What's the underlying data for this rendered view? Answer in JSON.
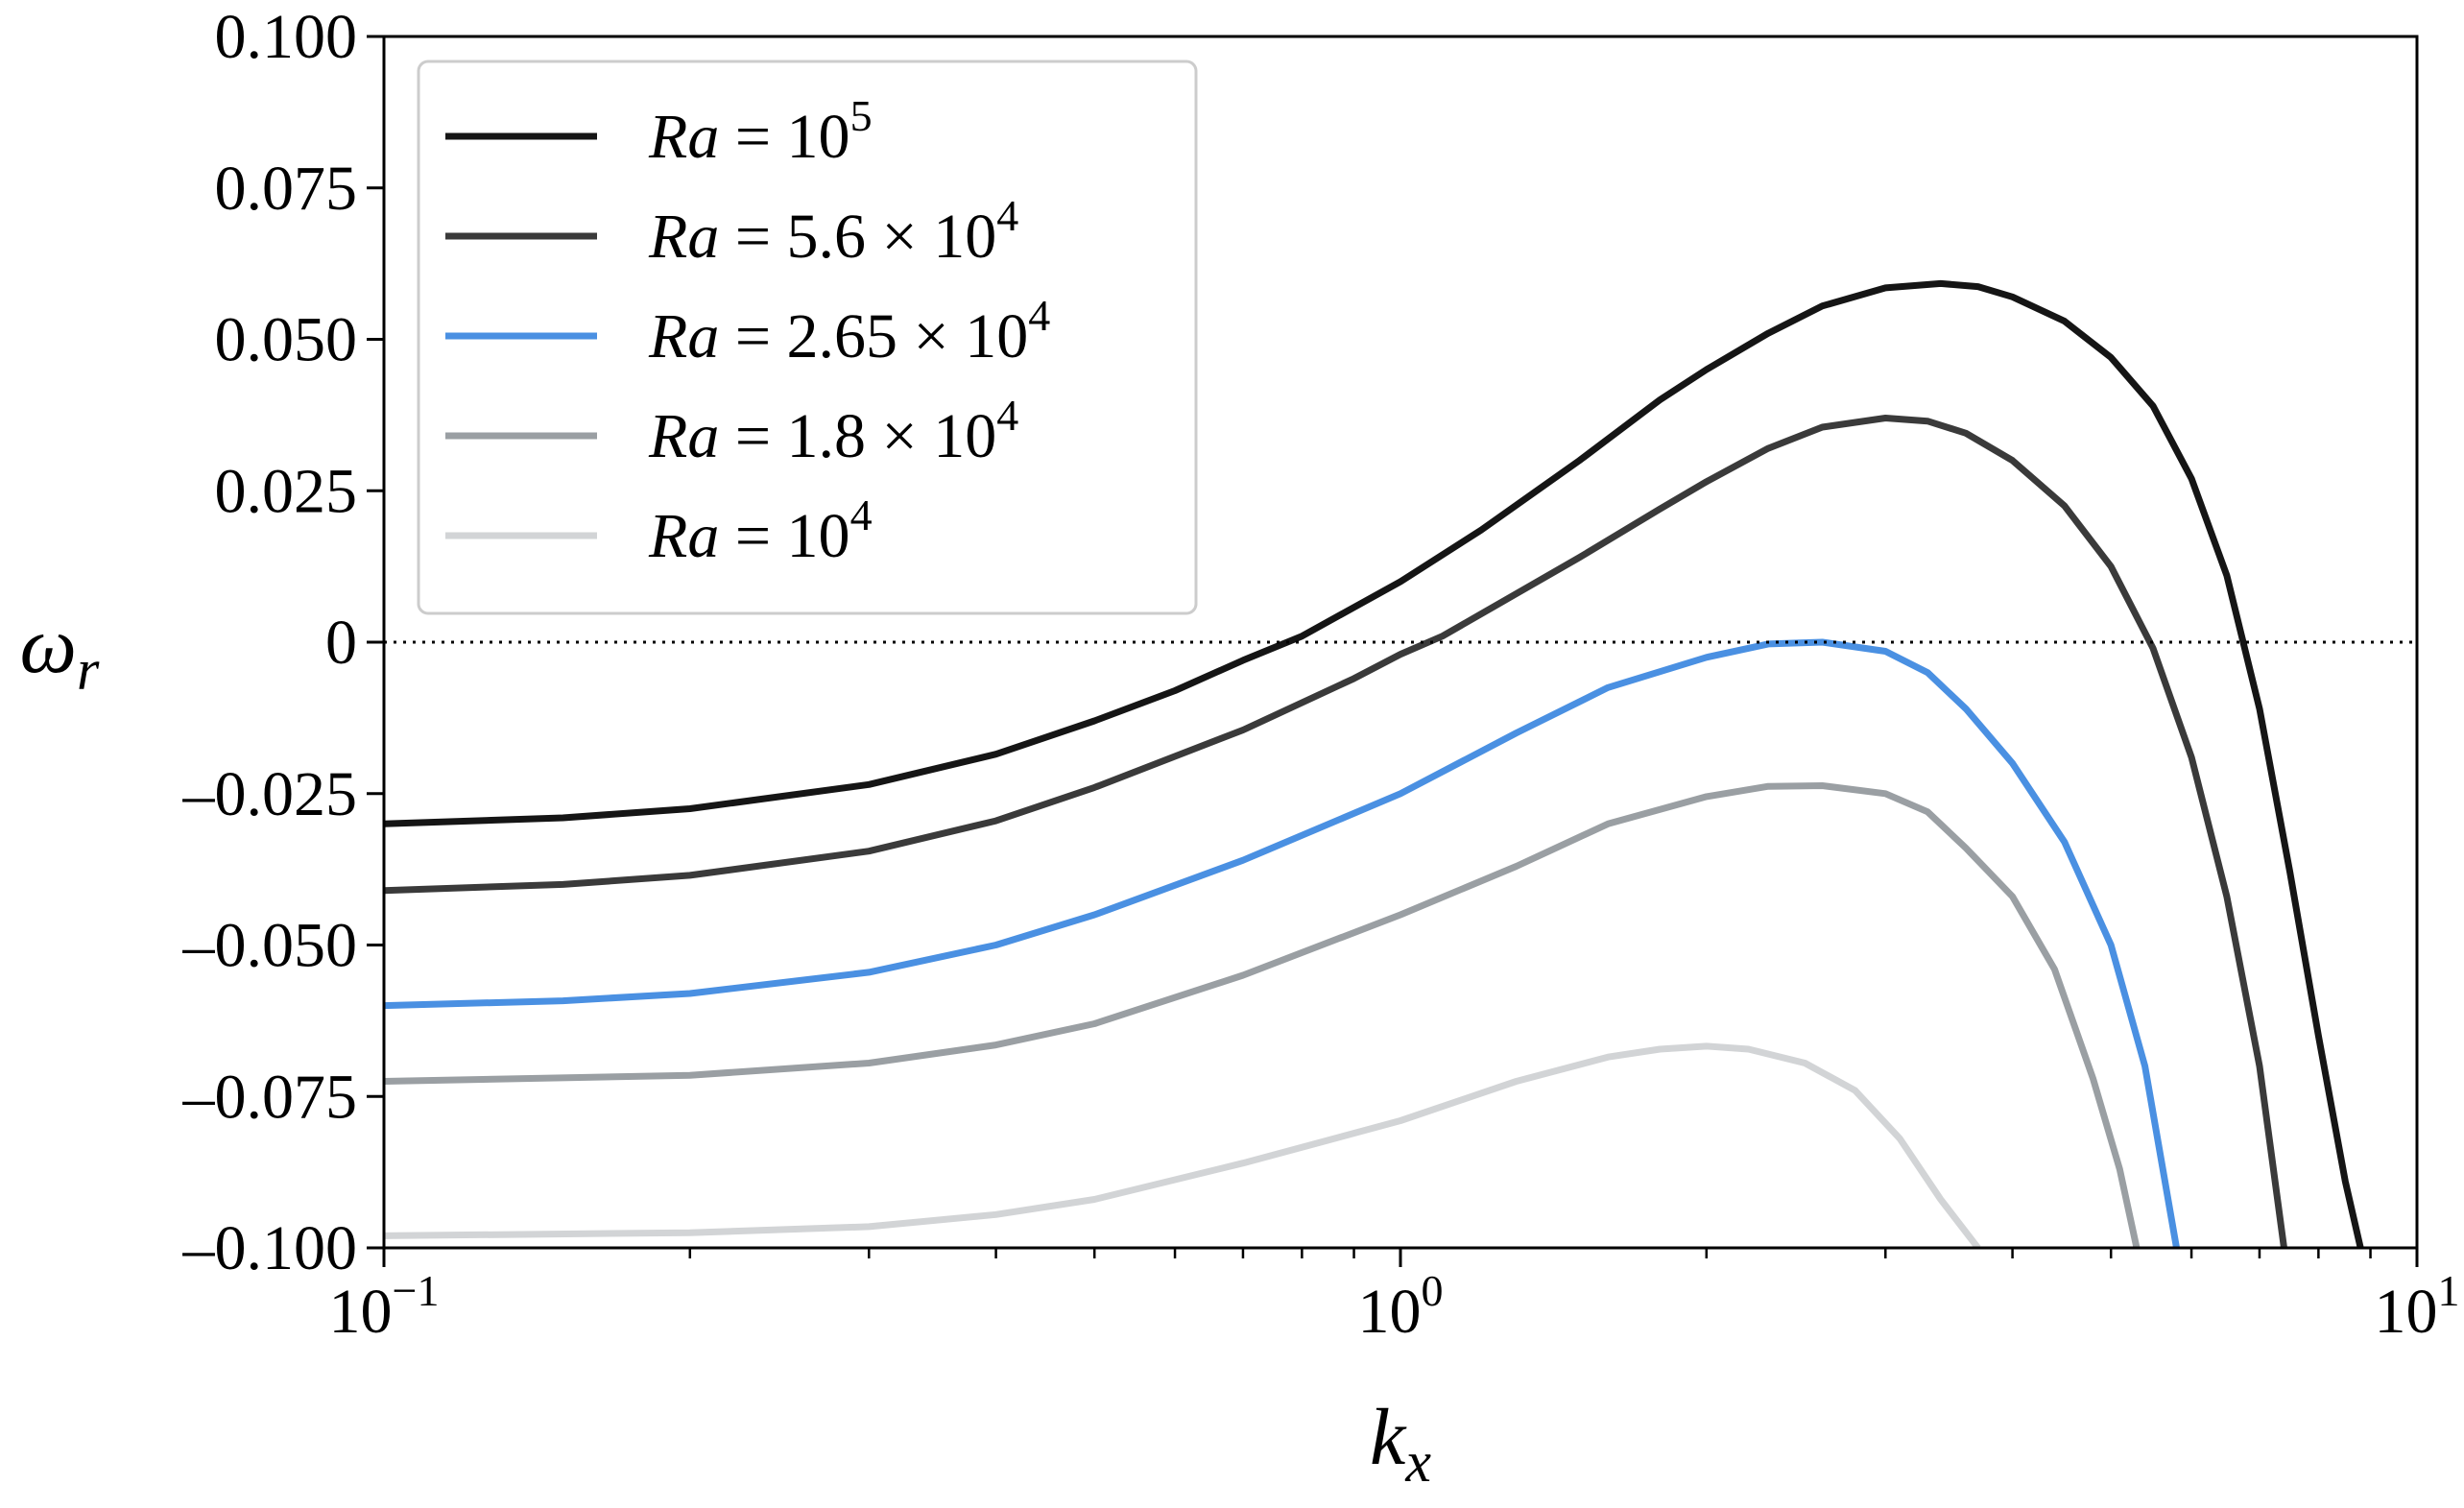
{
  "chart_data": {
    "type": "line",
    "title": "",
    "xlabel": "k",
    "xlabel_sub": "x",
    "ylabel": "ω",
    "ylabel_sub": "r",
    "xscale": "log",
    "xlim": [
      0.1,
      10
    ],
    "ylim": [
      -0.1,
      0.1
    ],
    "xticks": [
      {
        "value": 0.1,
        "base": "10",
        "exp": "−1"
      },
      {
        "value": 1,
        "base": "10",
        "exp": "0"
      },
      {
        "value": 10,
        "base": "10",
        "exp": "1"
      }
    ],
    "yticks": [
      {
        "value": 0.1,
        "label": "0.100"
      },
      {
        "value": 0.075,
        "label": "0.075"
      },
      {
        "value": 0.05,
        "label": "0.050"
      },
      {
        "value": 0.025,
        "label": "0.025"
      },
      {
        "value": 0,
        "label": "0"
      },
      {
        "value": -0.025,
        "label": "–0.025"
      },
      {
        "value": -0.05,
        "label": "–0.050"
      },
      {
        "value": -0.075,
        "label": "–0.075"
      },
      {
        "value": -0.1,
        "label": "–0.100"
      }
    ],
    "reference_line": {
      "y": 0,
      "style": "dotted"
    },
    "legend_position": "top-left",
    "grid": false,
    "series": [
      {
        "name": "Ra = 10^5",
        "legend": {
          "pre": "Ra",
          "mid": " = 10",
          "sup": "5"
        },
        "color": "#151515",
        "points": [
          [
            0.1,
            -0.03
          ],
          [
            0.15,
            -0.029
          ],
          [
            0.2,
            -0.0275
          ],
          [
            0.3,
            -0.0235
          ],
          [
            0.4,
            -0.0185
          ],
          [
            0.5,
            -0.013
          ],
          [
            0.6,
            -0.008
          ],
          [
            0.7,
            -0.003
          ],
          [
            0.8,
            0.001
          ],
          [
            1.0,
            0.01
          ],
          [
            1.2,
            0.0185
          ],
          [
            1.5,
            0.03
          ],
          [
            1.8,
            0.04
          ],
          [
            2.0,
            0.045
          ],
          [
            2.3,
            0.051
          ],
          [
            2.6,
            0.0555
          ],
          [
            3.0,
            0.0585
          ],
          [
            3.4,
            0.0592
          ],
          [
            3.7,
            0.0587
          ],
          [
            4.0,
            0.057
          ],
          [
            4.5,
            0.053
          ],
          [
            5.0,
            0.047
          ],
          [
            5.5,
            0.039
          ],
          [
            6.0,
            0.027
          ],
          [
            6.5,
            0.011
          ],
          [
            7.0,
            -0.011
          ],
          [
            7.5,
            -0.038
          ],
          [
            8.0,
            -0.065
          ],
          [
            8.5,
            -0.089
          ],
          [
            8.8,
            -0.1
          ]
        ]
      },
      {
        "name": "Ra = 5.6 × 10^4",
        "legend": {
          "pre": "Ra",
          "mid": " = 5.6 × 10",
          "sup": "4"
        },
        "color": "#3a3a3a",
        "points": [
          [
            0.1,
            -0.041
          ],
          [
            0.15,
            -0.04
          ],
          [
            0.2,
            -0.0385
          ],
          [
            0.3,
            -0.0345
          ],
          [
            0.4,
            -0.0295
          ],
          [
            0.5,
            -0.024
          ],
          [
            0.7,
            -0.0145
          ],
          [
            0.9,
            -0.006
          ],
          [
            1.0,
            -0.002
          ],
          [
            1.1,
            0.001
          ],
          [
            1.3,
            0.008
          ],
          [
            1.5,
            0.014
          ],
          [
            1.8,
            0.022
          ],
          [
            2.0,
            0.0265
          ],
          [
            2.3,
            0.032
          ],
          [
            2.6,
            0.0355
          ],
          [
            3.0,
            0.037
          ],
          [
            3.3,
            0.0365
          ],
          [
            3.6,
            0.0345
          ],
          [
            4.0,
            0.03
          ],
          [
            4.5,
            0.0225
          ],
          [
            5.0,
            0.0125
          ],
          [
            5.5,
            -0.001
          ],
          [
            6.0,
            -0.019
          ],
          [
            6.5,
            -0.042
          ],
          [
            7.0,
            -0.07
          ],
          [
            7.4,
            -0.1
          ]
        ]
      },
      {
        "name": "Ra = 2.65 × 10^4",
        "legend": {
          "pre": "Ra",
          "mid": " = 2.65 × 10",
          "sup": "4"
        },
        "color": "#4a90e2",
        "points": [
          [
            0.1,
            -0.06
          ],
          [
            0.15,
            -0.0592
          ],
          [
            0.2,
            -0.058
          ],
          [
            0.3,
            -0.0545
          ],
          [
            0.4,
            -0.05
          ],
          [
            0.5,
            -0.045
          ],
          [
            0.7,
            -0.036
          ],
          [
            1.0,
            -0.025
          ],
          [
            1.3,
            -0.015
          ],
          [
            1.6,
            -0.0075
          ],
          [
            2.0,
            -0.0025
          ],
          [
            2.3,
            -0.0003
          ],
          [
            2.6,
            0.0
          ],
          [
            3.0,
            -0.0015
          ],
          [
            3.3,
            -0.005
          ],
          [
            3.6,
            -0.011
          ],
          [
            4.0,
            -0.02
          ],
          [
            4.5,
            -0.033
          ],
          [
            5.0,
            -0.05
          ],
          [
            5.4,
            -0.07
          ],
          [
            5.8,
            -0.1
          ]
        ]
      },
      {
        "name": "Ra = 1.8 × 10^4",
        "legend": {
          "pre": "Ra",
          "mid": " = 1.8 × 10",
          "sup": "4"
        },
        "color": "#9a9fa3",
        "points": [
          [
            0.1,
            -0.0725
          ],
          [
            0.2,
            -0.0715
          ],
          [
            0.3,
            -0.0695
          ],
          [
            0.4,
            -0.0665
          ],
          [
            0.5,
            -0.063
          ],
          [
            0.7,
            -0.055
          ],
          [
            1.0,
            -0.045
          ],
          [
            1.3,
            -0.037
          ],
          [
            1.6,
            -0.03
          ],
          [
            2.0,
            -0.0255
          ],
          [
            2.3,
            -0.0238
          ],
          [
            2.6,
            -0.0237
          ],
          [
            3.0,
            -0.025
          ],
          [
            3.3,
            -0.028
          ],
          [
            3.6,
            -0.034
          ],
          [
            4.0,
            -0.042
          ],
          [
            4.4,
            -0.054
          ],
          [
            4.8,
            -0.072
          ],
          [
            5.1,
            -0.087
          ],
          [
            5.3,
            -0.1
          ]
        ]
      },
      {
        "name": "Ra = 10^4",
        "legend": {
          "pre": "Ra",
          "mid": " = 10",
          "sup": "4"
        },
        "color": "#d2d4d6",
        "points": [
          [
            0.1,
            -0.098
          ],
          [
            0.2,
            -0.0975
          ],
          [
            0.3,
            -0.0965
          ],
          [
            0.4,
            -0.0945
          ],
          [
            0.5,
            -0.092
          ],
          [
            0.7,
            -0.086
          ],
          [
            1.0,
            -0.079
          ],
          [
            1.3,
            -0.0725
          ],
          [
            1.6,
            -0.0685
          ],
          [
            1.8,
            -0.0672
          ],
          [
            2.0,
            -0.0667
          ],
          [
            2.2,
            -0.0672
          ],
          [
            2.5,
            -0.0695
          ],
          [
            2.8,
            -0.074
          ],
          [
            3.1,
            -0.082
          ],
          [
            3.4,
            -0.092
          ],
          [
            3.7,
            -0.1
          ]
        ]
      }
    ]
  }
}
